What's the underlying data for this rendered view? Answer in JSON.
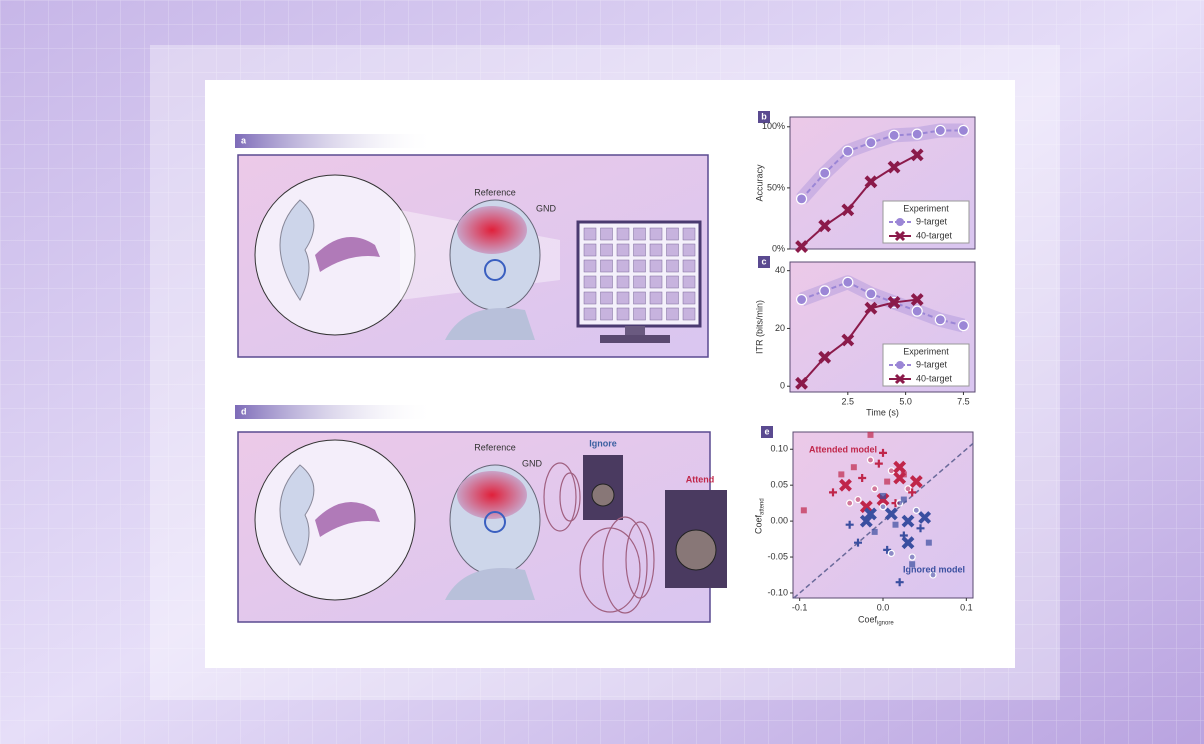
{
  "panel_labels": [
    "a",
    "b",
    "c",
    "d",
    "e"
  ],
  "figure_a": {
    "reference": "Reference",
    "gnd": "GND"
  },
  "figure_d": {
    "reference": "Reference",
    "gnd": "GND",
    "ignore": "Ignore",
    "attend": "Attend"
  },
  "chart_data": [
    {
      "type": "line",
      "ylabel": "Accuracy",
      "x": [
        0.5,
        1.5,
        2.5,
        3.5,
        4.5,
        5.5,
        6.5,
        7.5
      ],
      "xlim": [
        0,
        8
      ],
      "ylim": [
        0,
        108
      ],
      "yticks": [
        {
          "value": 0,
          "label": "0%"
        },
        {
          "value": 50,
          "label": "50%"
        },
        {
          "value": 100,
          "label": "100%"
        }
      ],
      "legend_title": "Experiment",
      "legend": "lower right",
      "series": [
        {
          "name": "9-target",
          "color": "#9b86d6",
          "values": [
            41,
            62,
            80,
            87,
            93,
            94,
            97,
            97
          ]
        },
        {
          "name": "40-target",
          "color": "#8b1a4a",
          "values": [
            2,
            19,
            32,
            55,
            67,
            77,
            null,
            null
          ]
        }
      ]
    },
    {
      "type": "line",
      "ylabel": "ITR (bits/min)",
      "xlabel": "Time (s)",
      "x": [
        0.5,
        1.5,
        2.5,
        3.5,
        4.5,
        5.5,
        6.5,
        7.5
      ],
      "xlim": [
        0,
        8
      ],
      "ylim": [
        -2,
        43
      ],
      "xticks": [
        2.5,
        {
          "value": 5,
          "label": "5.0"
        },
        7.5
      ],
      "yticks": [
        0,
        20,
        40
      ],
      "legend_title": "Experiment",
      "legend": "lower right",
      "series": [
        {
          "name": "9-target",
          "color": "#9b86d6",
          "values": [
            30,
            33,
            36,
            32,
            29,
            26,
            23,
            21
          ]
        },
        {
          "name": "40-target",
          "color": "#8b1a4a",
          "values": [
            1,
            10,
            16,
            27,
            29,
            30,
            null,
            null
          ]
        }
      ]
    },
    {
      "type": "scatter",
      "xlabel": "Coef",
      "xlabel_sub": "ignore",
      "ylabel": "Coef",
      "ylabel_sub": "attend",
      "xlim": [
        -0.108,
        0.108
      ],
      "ylim": [
        -0.107,
        0.124
      ],
      "xticks": [
        -0.1,
        {
          "value": 0,
          "label": "0.0"
        },
        0.1
      ],
      "yticks": [
        {
          "value": 0.1,
          "label": "0.10"
        },
        0.05,
        {
          "value": 0,
          "label": "0.00"
        },
        -0.05,
        {
          "value": -0.1,
          "label": "-0.10"
        }
      ],
      "series": [
        {
          "name": "Attended model",
          "color": "#c0264a",
          "x": [
            -0.06,
            -0.045,
            -0.035,
            -0.03,
            -0.025,
            -0.02,
            -0.015,
            -0.01,
            -0.005,
            0.0,
            0.005,
            0.01,
            0.015,
            0.02,
            0.025,
            0.03,
            0.035,
            0.04,
            -0.05,
            -0.015,
            0.0,
            0.02,
            -0.095,
            -0.04
          ],
          "values": [
            0.04,
            0.05,
            0.075,
            0.03,
            0.06,
            0.02,
            0.12,
            0.045,
            0.08,
            0.03,
            0.055,
            0.07,
            0.025,
            0.06,
            0.065,
            0.045,
            0.04,
            0.055,
            0.065,
            0.085,
            0.095,
            0.075,
            0.015,
            0.025
          ]
        },
        {
          "name": "Ignored model",
          "color": "#3a4fa0",
          "x": [
            -0.03,
            -0.02,
            -0.01,
            0.0,
            0.005,
            0.01,
            0.015,
            0.02,
            0.025,
            0.03,
            0.035,
            0.04,
            0.045,
            0.05,
            0.055,
            0.06,
            -0.04,
            -0.015,
            0.0,
            0.01,
            0.02,
            0.03,
            0.025,
            0.035
          ],
          "values": [
            -0.03,
            0.0,
            -0.015,
            0.02,
            -0.04,
            0.01,
            -0.005,
            0.025,
            -0.02,
            0.0,
            -0.06,
            0.015,
            -0.01,
            0.005,
            -0.03,
            -0.075,
            -0.005,
            0.01,
            0.035,
            -0.045,
            -0.085,
            -0.03,
            0.03,
            -0.05
          ]
        }
      ]
    }
  ]
}
